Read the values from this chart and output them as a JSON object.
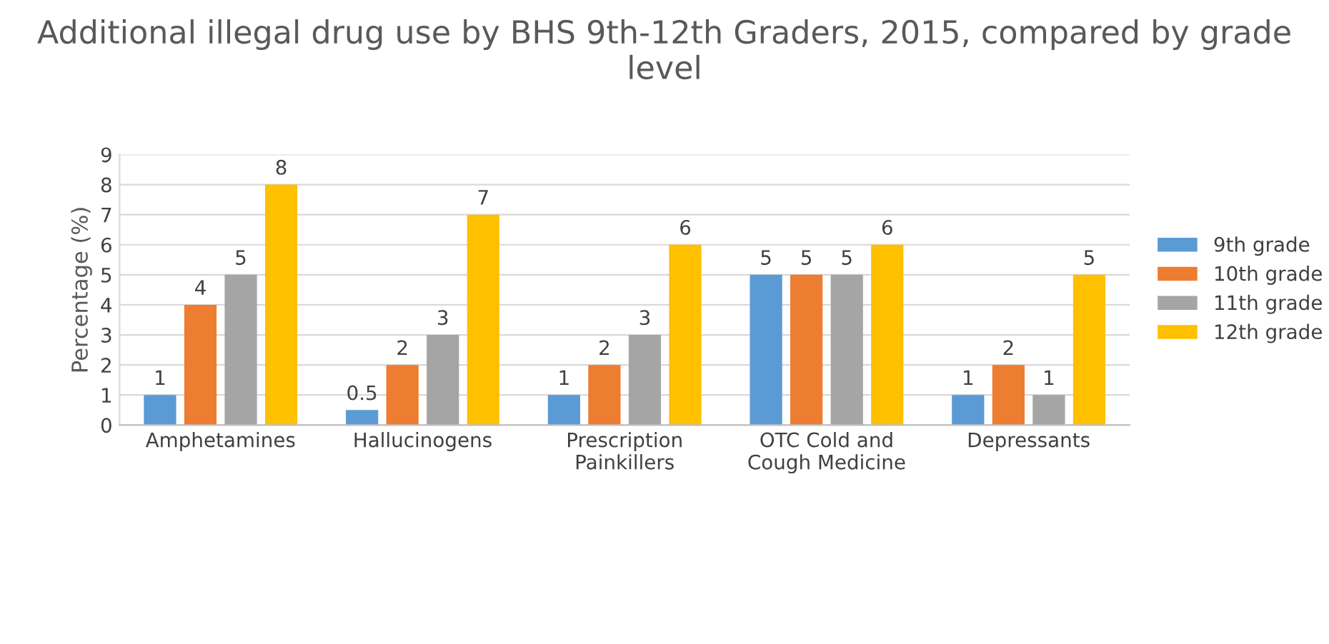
{
  "chart_data": {
    "type": "bar",
    "title": "Additional illegal drug use by BHS 9th-12th Graders, 2015, compared by grade level",
    "ylabel": "Percentage (%)",
    "categories": [
      "Amphetamines",
      "Hallucinogens",
      "Prescription Painkillers",
      "OTC Cold and Cough Medicine",
      "Depressants"
    ],
    "series": [
      {
        "name": "9th grade",
        "color": "#5b9bd5",
        "values": [
          1,
          0.5,
          1,
          5,
          1
        ]
      },
      {
        "name": "10th grade",
        "color": "#ed7d31",
        "values": [
          4,
          2,
          2,
          5,
          2
        ]
      },
      {
        "name": "11th grade",
        "color": "#a5a5a5",
        "values": [
          5,
          3,
          3,
          5,
          1
        ]
      },
      {
        "name": "12th grade",
        "color": "#ffc000",
        "values": [
          8,
          7,
          6,
          6,
          5
        ]
      }
    ],
    "ylim": [
      0,
      9
    ],
    "yticks": [
      0,
      1,
      2,
      3,
      4,
      5,
      6,
      7,
      8,
      9
    ],
    "grid": "y",
    "legend": "right",
    "data_labels": true
  }
}
